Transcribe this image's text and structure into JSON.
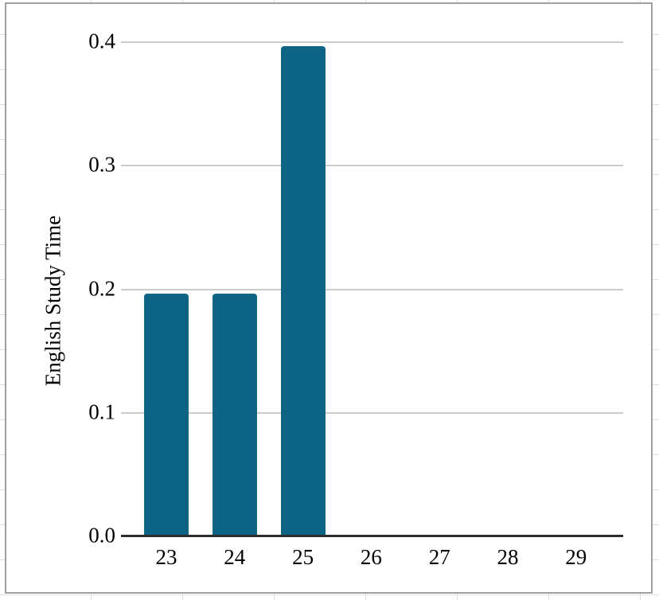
{
  "chart_data": {
    "type": "bar",
    "ylabel": "English Study Time",
    "categories": [
      "23",
      "24",
      "25",
      "26",
      "27",
      "28",
      "29"
    ],
    "values": [
      0.2,
      0.2,
      0.4,
      0,
      0,
      0,
      0
    ],
    "y_ticks": [
      "0.0",
      "0.1",
      "0.2",
      "0.3",
      "0.4"
    ],
    "ylim": [
      0,
      0.4
    ],
    "grid": true,
    "colors": {
      "bar": "#0d6484",
      "gridline": "#cbcbcb",
      "axis": "#2d2d2d",
      "tick_text": "#000000"
    }
  },
  "spreadsheet": {
    "background": "#ffffff",
    "cell_line_color": "#e0e0e0",
    "chart_border_color": "#a0a0a0",
    "chart_fill": "#ffffff"
  }
}
